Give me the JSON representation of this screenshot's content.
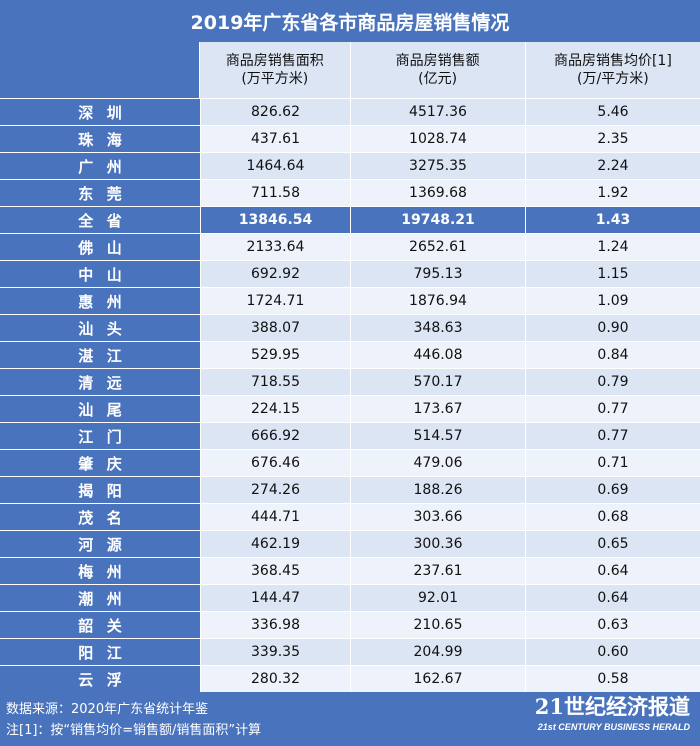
{
  "title": "2019年广东省各市商品房屋销售情况",
  "columns": [
    [
      "商品房销售面积",
      "(万平方米)"
    ],
    [
      "商品房销售额",
      "(亿元)"
    ],
    [
      "商品房销售均价[1]",
      "(万/平方米)"
    ]
  ],
  "rows": [
    {
      "city": "深圳",
      "area": "826.62",
      "amount": "4517.36",
      "price": "5.46"
    },
    {
      "city": "珠海",
      "area": "437.61",
      "amount": "1028.74",
      "price": "2.35"
    },
    {
      "city": "广州",
      "area": "1464.64",
      "amount": "3275.35",
      "price": "2.24"
    },
    {
      "city": "东莞",
      "area": "711.58",
      "amount": "1369.68",
      "price": "1.92"
    },
    {
      "city": "全省",
      "area": "13846.54",
      "amount": "19748.21",
      "price": "1.43",
      "highlight": true
    },
    {
      "city": "佛山",
      "area": "2133.64",
      "amount": "2652.61",
      "price": "1.24"
    },
    {
      "city": "中山",
      "area": "692.92",
      "amount": "795.13",
      "price": "1.15"
    },
    {
      "city": "惠州",
      "area": "1724.71",
      "amount": "1876.94",
      "price": "1.09"
    },
    {
      "city": "汕头",
      "area": "388.07",
      "amount": "348.63",
      "price": "0.90"
    },
    {
      "city": "湛江",
      "area": "529.95",
      "amount": "446.08",
      "price": "0.84"
    },
    {
      "city": "清远",
      "area": "718.55",
      "amount": "570.17",
      "price": "0.79"
    },
    {
      "city": "汕尾",
      "area": "224.15",
      "amount": "173.67",
      "price": "0.77"
    },
    {
      "city": "江门",
      "area": "666.92",
      "amount": "514.57",
      "price": "0.77"
    },
    {
      "city": "肇庆",
      "area": "676.46",
      "amount": "479.06",
      "price": "0.71"
    },
    {
      "city": "揭阳",
      "area": "274.26",
      "amount": "188.26",
      "price": "0.69"
    },
    {
      "city": "茂名",
      "area": "444.71",
      "amount": "303.66",
      "price": "0.68"
    },
    {
      "city": "河源",
      "area": "462.19",
      "amount": "300.36",
      "price": "0.65"
    },
    {
      "city": "梅州",
      "area": "368.45",
      "amount": "237.61",
      "price": "0.64"
    },
    {
      "city": "潮州",
      "area": "144.47",
      "amount": "92.01",
      "price": "0.64"
    },
    {
      "city": "韶关",
      "area": "336.98",
      "amount": "210.65",
      "price": "0.63"
    },
    {
      "city": "阳江",
      "area": "339.35",
      "amount": "204.99",
      "price": "0.60"
    },
    {
      "city": "云浮",
      "area": "280.32",
      "amount": "162.67",
      "price": "0.58"
    }
  ],
  "footer": {
    "source": "数据来源：2020年广东省统计年鉴",
    "note": "注[1]：按“销售均价=销售额/销售面积”计算",
    "brand_cn": "21世纪经济报道",
    "brand_en": "21st CENTURY BUSINESS HERALD"
  },
  "colors": {
    "header_blue": "#4a73bd",
    "row_light": "#dbe5f4",
    "row_lighter": "#eef2fa"
  }
}
